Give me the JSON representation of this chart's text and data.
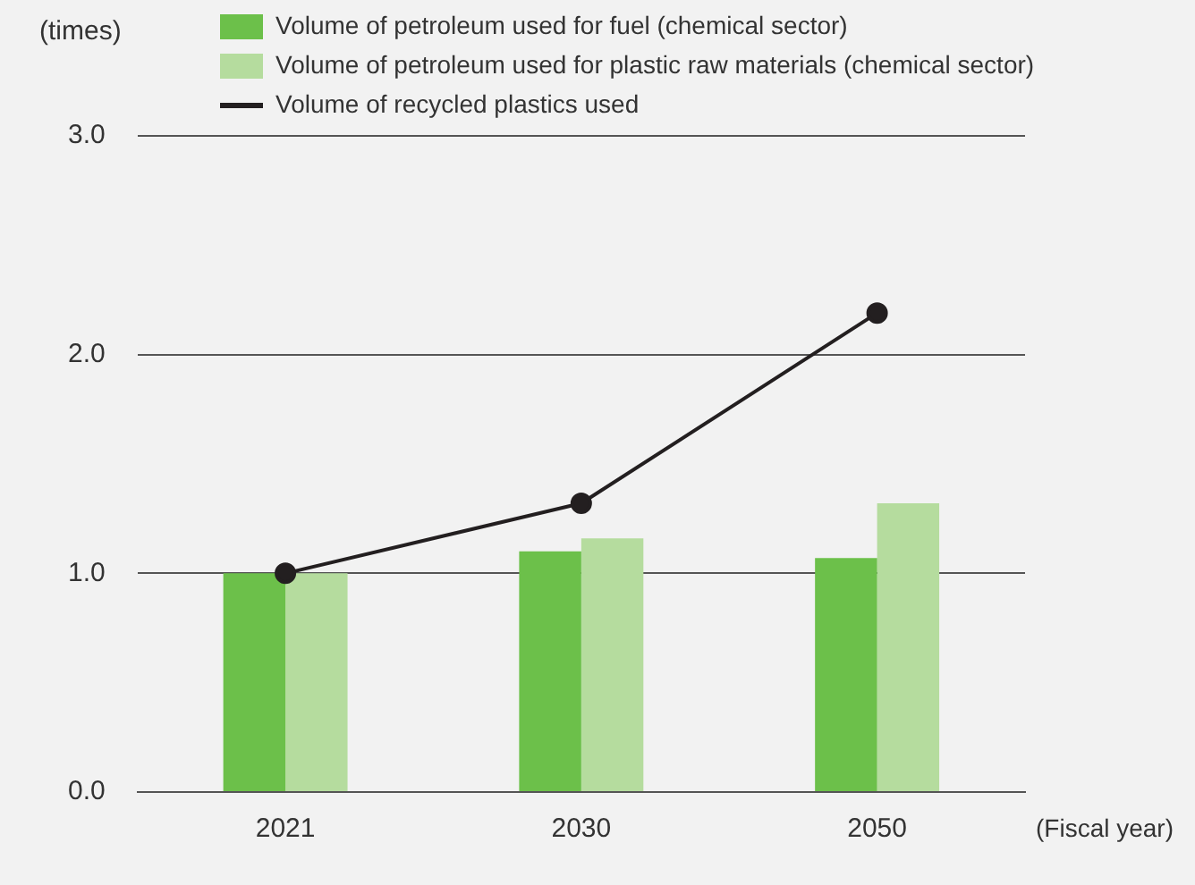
{
  "chart_data": {
    "type": "bar",
    "ylabel": "(times)",
    "xlabel": "(Fiscal year)",
    "categories": [
      "2021",
      "2030",
      "2050"
    ],
    "series": [
      {
        "name": "Volume of petroleum used for fuel (chemical sector)",
        "color": "#6cc04a",
        "values": [
          1.0,
          1.1,
          1.07
        ]
      },
      {
        "name": "Volume of petroleum used for plastic raw materials (chemical sector)",
        "color": "#b5dc9e",
        "values": [
          1.0,
          1.16,
          1.32
        ]
      },
      {
        "name": "Volume of recycled plastics used",
        "type": "line",
        "color": "#231f20",
        "values": [
          1.0,
          1.32,
          2.19
        ],
        "marker": "circle",
        "line_style": "solid"
      }
    ],
    "ylim": [
      0,
      3
    ],
    "yticks": [
      {
        "value": 0,
        "label": "0.0"
      },
      {
        "value": 1,
        "label": "1.0"
      },
      {
        "value": 2,
        "label": "2.0"
      },
      {
        "value": 3,
        "label": "3.0"
      }
    ],
    "grid": "y",
    "legend": "top"
  }
}
